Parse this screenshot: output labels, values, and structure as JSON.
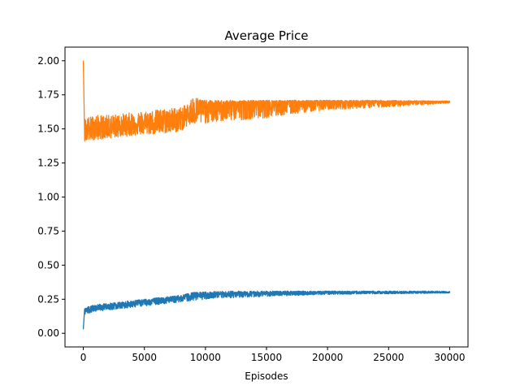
{
  "chart_data": {
    "type": "line",
    "title": "Average Price",
    "xlabel": "Episodes",
    "ylabel": "",
    "xlim": [
      -1500,
      31500
    ],
    "ylim": [
      -0.1,
      2.1
    ],
    "x_ticks": [
      0,
      5000,
      10000,
      15000,
      20000,
      25000,
      30000
    ],
    "x_tick_labels": [
      "0",
      "5000",
      "10000",
      "15000",
      "20000",
      "25000",
      "30000"
    ],
    "y_ticks": [
      0.0,
      0.25,
      0.5,
      0.75,
      1.0,
      1.25,
      1.5,
      1.75,
      2.0
    ],
    "y_tick_labels": [
      "0.00",
      "0.25",
      "0.50",
      "0.75",
      "1.00",
      "1.25",
      "1.50",
      "1.75",
      "2.00"
    ],
    "grid": false,
    "series": [
      {
        "color": "#ff7f0e",
        "x": [
          0,
          100,
          1000,
          2000,
          3000,
          4000,
          5000,
          6000,
          7000,
          8000,
          8500,
          9000,
          10000,
          12000,
          15000,
          18000,
          20000,
          25000,
          30000
        ],
        "values": [
          2.0,
          1.48,
          1.5,
          1.51,
          1.52,
          1.53,
          1.54,
          1.55,
          1.56,
          1.58,
          1.6,
          1.64,
          1.66,
          1.68,
          1.69,
          1.695,
          1.697,
          1.698,
          1.698
        ],
        "band_low": [
          1.9,
          1.41,
          1.42,
          1.43,
          1.44,
          1.45,
          1.46,
          1.46,
          1.47,
          1.48,
          1.52,
          1.53,
          1.54,
          1.56,
          1.58,
          1.62,
          1.64,
          1.66,
          1.69
        ],
        "band_high": [
          2.0,
          1.58,
          1.6,
          1.6,
          1.61,
          1.62,
          1.63,
          1.64,
          1.65,
          1.66,
          1.68,
          1.74,
          1.71,
          1.71,
          1.71,
          1.71,
          1.71,
          1.71,
          1.705
        ]
      },
      {
        "color": "#1f77b4",
        "x": [
          0,
          100,
          1000,
          2000,
          3000,
          4000,
          5000,
          6000,
          7000,
          8000,
          9000,
          10000,
          12000,
          15000,
          18000,
          20000,
          25000,
          30000
        ],
        "values": [
          0.03,
          0.17,
          0.19,
          0.2,
          0.21,
          0.22,
          0.23,
          0.24,
          0.25,
          0.26,
          0.275,
          0.28,
          0.29,
          0.295,
          0.298,
          0.3,
          0.3,
          0.3
        ],
        "band_low": [
          0.03,
          0.14,
          0.16,
          0.17,
          0.18,
          0.19,
          0.2,
          0.21,
          0.22,
          0.23,
          0.24,
          0.25,
          0.26,
          0.27,
          0.28,
          0.285,
          0.29,
          0.295
        ],
        "band_high": [
          0.2,
          0.19,
          0.21,
          0.22,
          0.23,
          0.24,
          0.25,
          0.26,
          0.27,
          0.28,
          0.3,
          0.305,
          0.31,
          0.31,
          0.31,
          0.31,
          0.31,
          0.31
        ]
      }
    ]
  }
}
